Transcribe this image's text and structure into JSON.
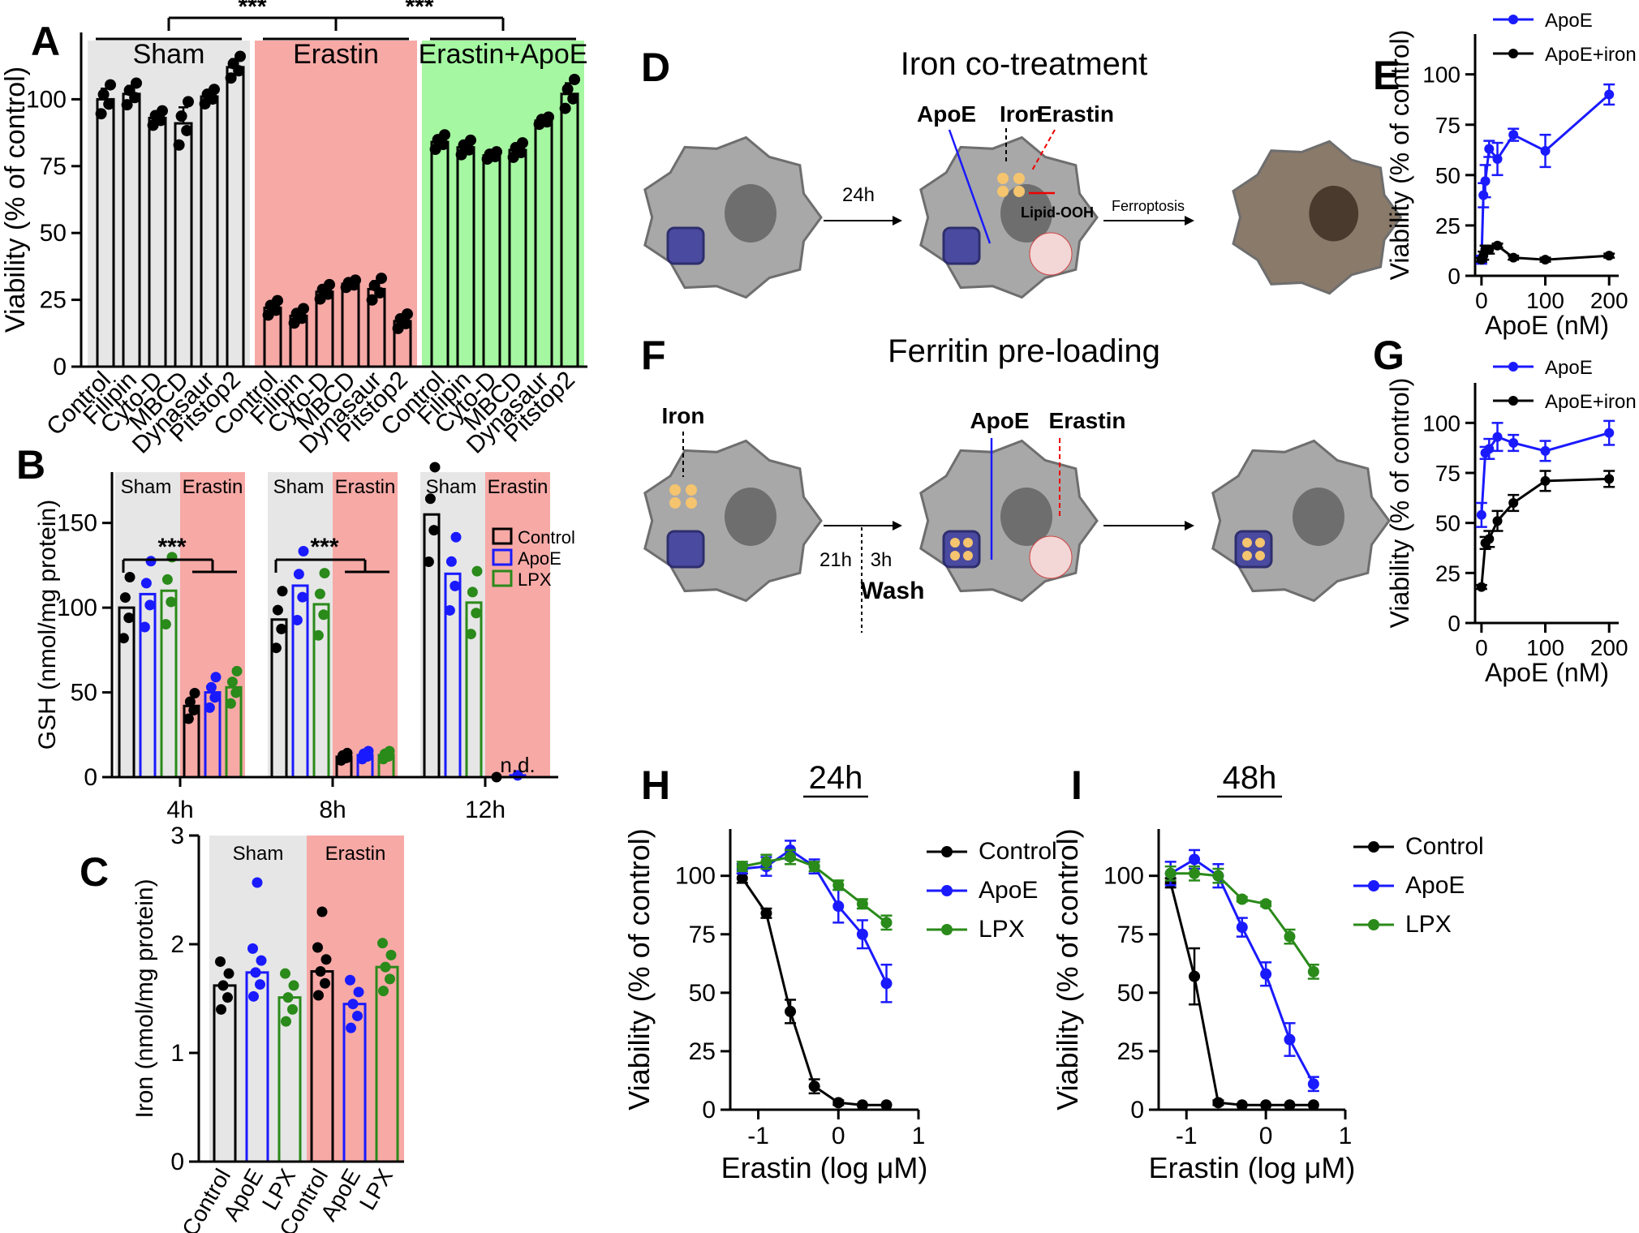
{
  "panels": {
    "A": {
      "label": "A",
      "ylabel": "Viability (% of control)",
      "ylim": [
        0,
        125
      ],
      "yticks": [
        0,
        25,
        50,
        75,
        100
      ],
      "groups": [
        {
          "name": "Sham",
          "color": "#e6e6e6",
          "categories": [
            "Control",
            "Filipin",
            "Cyto-D",
            "MBCD",
            "Dynasaur",
            "Pitstop2"
          ],
          "values": [
            100,
            102,
            93,
            91,
            101,
            112
          ],
          "errors": [
            4,
            3,
            2,
            6,
            2,
            3
          ]
        },
        {
          "name": "Erastin",
          "color": "#f7a9a6",
          "categories": [
            "Control",
            "Filipin",
            "Cyto-D",
            "MBCD",
            "Dynasaur",
            "Pitstop2"
          ],
          "values": [
            22,
            19,
            28,
            31,
            29,
            17
          ],
          "errors": [
            2,
            2,
            2,
            1,
            3,
            2
          ]
        },
        {
          "name": "Erastin+ApoE",
          "color": "#a5f7a1",
          "categories": [
            "Control",
            "Filipin",
            "Cyto-D",
            "MBCD",
            "Dynasaur",
            "Pitstop2"
          ],
          "values": [
            84,
            82,
            79,
            81,
            92,
            102
          ],
          "errors": [
            2,
            2,
            1,
            2,
            1,
            4
          ]
        }
      ],
      "significance": [
        "***",
        "***"
      ]
    },
    "B": {
      "label": "B",
      "ylabel": "GSH (nmol/mg protein)",
      "ylim": [
        0,
        180
      ],
      "yticks": [
        0,
        50,
        100,
        150
      ],
      "timepoints": [
        "4h",
        "8h",
        "12h"
      ],
      "shade_labels": [
        "Sham",
        "Erastin"
      ],
      "series": [
        {
          "name": "Control",
          "color": "#000000",
          "sham": [
            100,
            93,
            155
          ],
          "erastin": [
            42,
            12,
            0
          ]
        },
        {
          "name": "ApoE",
          "color": "#1a1aff",
          "sham": [
            108,
            113,
            120
          ],
          "erastin": [
            50,
            13,
            1
          ]
        },
        {
          "name": "LPX",
          "color": "#2a8a1a",
          "sham": [
            110,
            102,
            103
          ],
          "erastin": [
            53,
            13,
            null
          ]
        }
      ],
      "significance": [
        "***",
        "***"
      ],
      "nd_label": "n.d."
    },
    "C": {
      "label": "C",
      "ylabel": "Iron (nmol/mg protein)",
      "ylim": [
        0,
        3
      ],
      "yticks": [
        0,
        1,
        2,
        3
      ],
      "shade_labels": [
        "Sham",
        "Erastin"
      ],
      "categories": [
        "Control",
        "ApoE",
        "LPX",
        "Control",
        "ApoE",
        "LPX"
      ],
      "values": [
        1.62,
        1.74,
        1.51,
        1.75,
        1.45,
        1.79
      ],
      "colors": [
        "#000000",
        "#1a1aff",
        "#2a8a1a",
        "#000000",
        "#1a1aff",
        "#2a8a1a"
      ]
    },
    "D": {
      "label": "D",
      "title": "Iron co-treatment",
      "labels": {
        "apoe": "ApoE",
        "iron": "Iron",
        "erastin": "Erastin",
        "time": "24h",
        "lipid": "Lipid-OOH",
        "outcome": "Ferroptosis"
      }
    },
    "E": {
      "label": "E",
      "type": "line",
      "xlabel": "ApoE (nM)",
      "ylabel": "Viability (% of control)",
      "xlim": [
        -10,
        215
      ],
      "ylim": [
        0,
        120
      ],
      "xticks": [
        0,
        100,
        200
      ],
      "yticks": [
        0,
        25,
        50,
        75,
        100
      ],
      "series": [
        {
          "name": "ApoE",
          "color": "#1a1aff",
          "x": [
            0,
            3,
            6,
            12,
            25,
            50,
            100,
            200
          ],
          "y": [
            8,
            40,
            47,
            63,
            58,
            70,
            62,
            90
          ],
          "err": [
            2,
            6,
            8,
            4,
            8,
            3,
            8,
            5
          ]
        },
        {
          "name": "ApoE+iron",
          "color": "#000000",
          "x": [
            0,
            3,
            6,
            12,
            25,
            50,
            100,
            200
          ],
          "y": [
            8,
            10,
            13,
            13,
            15,
            9,
            8,
            10
          ],
          "err": [
            1,
            2,
            2,
            2,
            1,
            1,
            1,
            1
          ]
        }
      ]
    },
    "F": {
      "label": "F",
      "title": "Ferritin pre-loading",
      "labels": {
        "iron": "Iron",
        "apoe": "ApoE",
        "erastin": "Erastin",
        "t1": "21h",
        "t2": "3h",
        "wash": "Wash"
      }
    },
    "G": {
      "label": "G",
      "type": "line",
      "xlabel": "ApoE (nM)",
      "ylabel": "Viability (% of control)",
      "xlim": [
        -10,
        215
      ],
      "ylim": [
        0,
        120
      ],
      "xticks": [
        0,
        100,
        200
      ],
      "yticks": [
        0,
        25,
        50,
        75,
        100
      ],
      "series": [
        {
          "name": "ApoE",
          "color": "#1a1aff",
          "x": [
            0,
            6,
            12,
            25,
            50,
            100,
            200
          ],
          "y": [
            54,
            85,
            87,
            93,
            90,
            86,
            95
          ],
          "err": [
            6,
            3,
            5,
            7,
            4,
            5,
            6
          ]
        },
        {
          "name": "ApoE+iron",
          "color": "#000000",
          "x": [
            0,
            6,
            12,
            25,
            50,
            100,
            200
          ],
          "y": [
            18,
            40,
            42,
            51,
            60,
            71,
            72
          ],
          "err": [
            1,
            3,
            4,
            5,
            4,
            5,
            4
          ]
        }
      ]
    },
    "H": {
      "label": "H",
      "title": "24h",
      "type": "line",
      "xlabel": "Erastin (log μM)",
      "ylabel": "Viability (% of control)",
      "xlim": [
        -1.35,
        1
      ],
      "ylim": [
        0,
        120
      ],
      "xticks": [
        -1,
        0,
        1
      ],
      "yticks": [
        0,
        25,
        50,
        75,
        100
      ],
      "series": [
        {
          "name": "Control",
          "color": "#000000",
          "x": [
            -1.2,
            -0.9,
            -0.6,
            -0.3,
            0,
            0.3,
            0.6
          ],
          "y": [
            99,
            84,
            42,
            10,
            3,
            2,
            2
          ],
          "err": [
            2,
            2,
            5,
            3,
            1,
            0,
            0
          ]
        },
        {
          "name": "ApoE",
          "color": "#1a1aff",
          "x": [
            -1.2,
            -0.9,
            -0.6,
            -0.3,
            0,
            0.3,
            0.6
          ],
          "y": [
            103,
            104,
            111,
            104,
            87,
            75,
            54
          ],
          "err": [
            2,
            4,
            4,
            3,
            7,
            6,
            8
          ]
        },
        {
          "name": "LPX",
          "color": "#2a8a1a",
          "x": [
            -1.2,
            -0.9,
            -0.6,
            -0.3,
            0,
            0.3,
            0.6
          ],
          "y": [
            104,
            106,
            108,
            104,
            96,
            88,
            80
          ],
          "err": [
            2,
            3,
            3,
            2,
            2,
            2,
            3
          ]
        }
      ]
    },
    "I": {
      "label": "I",
      "title": "48h",
      "type": "line",
      "xlabel": "Erastin (log μM)",
      "ylabel": "Viability (% of control)",
      "xlim": [
        -1.35,
        1
      ],
      "ylim": [
        0,
        120
      ],
      "xticks": [
        -1,
        0,
        1
      ],
      "yticks": [
        0,
        25,
        50,
        75,
        100
      ],
      "series": [
        {
          "name": "Control",
          "color": "#000000",
          "x": [
            -1.2,
            -0.9,
            -0.6,
            -0.3,
            0,
            0.3,
            0.6
          ],
          "y": [
            97,
            57,
            3,
            2,
            2,
            2,
            2
          ],
          "err": [
            2,
            12,
            1,
            0,
            0,
            0,
            0
          ]
        },
        {
          "name": "ApoE",
          "color": "#1a1aff",
          "x": [
            -1.2,
            -0.9,
            -0.6,
            -0.3,
            0,
            0.3,
            0.6
          ],
          "y": [
            101,
            107,
            100,
            78,
            58,
            30,
            11
          ],
          "err": [
            5,
            4,
            5,
            4,
            5,
            7,
            3
          ]
        },
        {
          "name": "LPX",
          "color": "#2a8a1a",
          "x": [
            -1.2,
            -0.9,
            -0.6,
            -0.3,
            0,
            0.3,
            0.6
          ],
          "y": [
            101,
            101,
            100,
            90,
            88,
            74,
            59
          ],
          "err": [
            3,
            3,
            3,
            1,
            1,
            3,
            3
          ]
        }
      ]
    }
  },
  "chart_data": [
    {
      "type": "bar",
      "panel": "A",
      "title": "",
      "ylabel": "Viability (% of control)",
      "categories": [
        "Control",
        "Filipin",
        "Cyto-D",
        "MBCD",
        "Dynasaur",
        "Pitstop2"
      ],
      "series": [
        {
          "name": "Sham",
          "values": [
            100,
            102,
            93,
            91,
            101,
            112
          ]
        },
        {
          "name": "Erastin",
          "values": [
            22,
            19,
            28,
            31,
            29,
            17
          ]
        },
        {
          "name": "Erastin+ApoE",
          "values": [
            84,
            82,
            79,
            81,
            92,
            102
          ]
        }
      ],
      "ylim": [
        0,
        125
      ]
    },
    {
      "type": "bar",
      "panel": "B",
      "ylabel": "GSH (nmol/mg protein)",
      "categories": [
        "4h",
        "8h",
        "12h"
      ],
      "series": [
        {
          "name": "Control Sham",
          "values": [
            100,
            93,
            155
          ]
        },
        {
          "name": "ApoE Sham",
          "values": [
            108,
            113,
            120
          ]
        },
        {
          "name": "LPX Sham",
          "values": [
            110,
            102,
            103
          ]
        },
        {
          "name": "Control Erastin",
          "values": [
            42,
            12,
            0
          ]
        },
        {
          "name": "ApoE Erastin",
          "values": [
            50,
            13,
            1
          ]
        },
        {
          "name": "LPX Erastin",
          "values": [
            53,
            13,
            null
          ]
        }
      ],
      "ylim": [
        0,
        180
      ]
    },
    {
      "type": "bar",
      "panel": "C",
      "ylabel": "Iron (nmol/mg protein)",
      "categories": [
        "Control",
        "ApoE",
        "LPX",
        "Control",
        "ApoE",
        "LPX"
      ],
      "values": [
        1.62,
        1.74,
        1.51,
        1.75,
        1.45,
        1.79
      ],
      "ylim": [
        0,
        3
      ]
    },
    {
      "type": "line",
      "panel": "E",
      "xlabel": "ApoE (nM)",
      "ylabel": "Viability (% of control)",
      "series": [
        {
          "name": "ApoE",
          "x": [
            0,
            3,
            6,
            12,
            25,
            50,
            100,
            200
          ],
          "y": [
            8,
            40,
            47,
            63,
            58,
            70,
            62,
            90
          ]
        },
        {
          "name": "ApoE+iron",
          "x": [
            0,
            3,
            6,
            12,
            25,
            50,
            100,
            200
          ],
          "y": [
            8,
            10,
            13,
            13,
            15,
            9,
            8,
            10
          ]
        }
      ]
    },
    {
      "type": "line",
      "panel": "G",
      "xlabel": "ApoE (nM)",
      "ylabel": "Viability (% of control)",
      "series": [
        {
          "name": "ApoE",
          "x": [
            0,
            6,
            12,
            25,
            50,
            100,
            200
          ],
          "y": [
            54,
            85,
            87,
            93,
            90,
            86,
            95
          ]
        },
        {
          "name": "ApoE+iron",
          "x": [
            0,
            6,
            12,
            25,
            50,
            100,
            200
          ],
          "y": [
            18,
            40,
            42,
            51,
            60,
            71,
            72
          ]
        }
      ]
    },
    {
      "type": "line",
      "panel": "H",
      "title": "24h",
      "xlabel": "Erastin (log μM)",
      "ylabel": "Viability (% of control)",
      "series": [
        {
          "name": "Control",
          "x": [
            -1.2,
            -0.9,
            -0.6,
            -0.3,
            0,
            0.3,
            0.6
          ],
          "y": [
            99,
            84,
            42,
            10,
            3,
            2,
            2
          ]
        },
        {
          "name": "ApoE",
          "x": [
            -1.2,
            -0.9,
            -0.6,
            -0.3,
            0,
            0.3,
            0.6
          ],
          "y": [
            103,
            104,
            111,
            104,
            87,
            75,
            54
          ]
        },
        {
          "name": "LPX",
          "x": [
            -1.2,
            -0.9,
            -0.6,
            -0.3,
            0,
            0.3,
            0.6
          ],
          "y": [
            104,
            106,
            108,
            104,
            96,
            88,
            80
          ]
        }
      ]
    },
    {
      "type": "line",
      "panel": "I",
      "title": "48h",
      "xlabel": "Erastin (log μM)",
      "ylabel": "Viability (% of control)",
      "series": [
        {
          "name": "Control",
          "x": [
            -1.2,
            -0.9,
            -0.6,
            -0.3,
            0,
            0.3,
            0.6
          ],
          "y": [
            97,
            57,
            3,
            2,
            2,
            2,
            2
          ]
        },
        {
          "name": "ApoE",
          "x": [
            -1.2,
            -0.9,
            -0.6,
            -0.3,
            0,
            0.3,
            0.6
          ],
          "y": [
            101,
            107,
            100,
            78,
            58,
            30,
            11
          ]
        },
        {
          "name": "LPX",
          "x": [
            -1.2,
            -0.9,
            -0.6,
            -0.3,
            0,
            0.3,
            0.6
          ],
          "y": [
            101,
            101,
            100,
            90,
            88,
            74,
            59
          ]
        }
      ]
    }
  ]
}
